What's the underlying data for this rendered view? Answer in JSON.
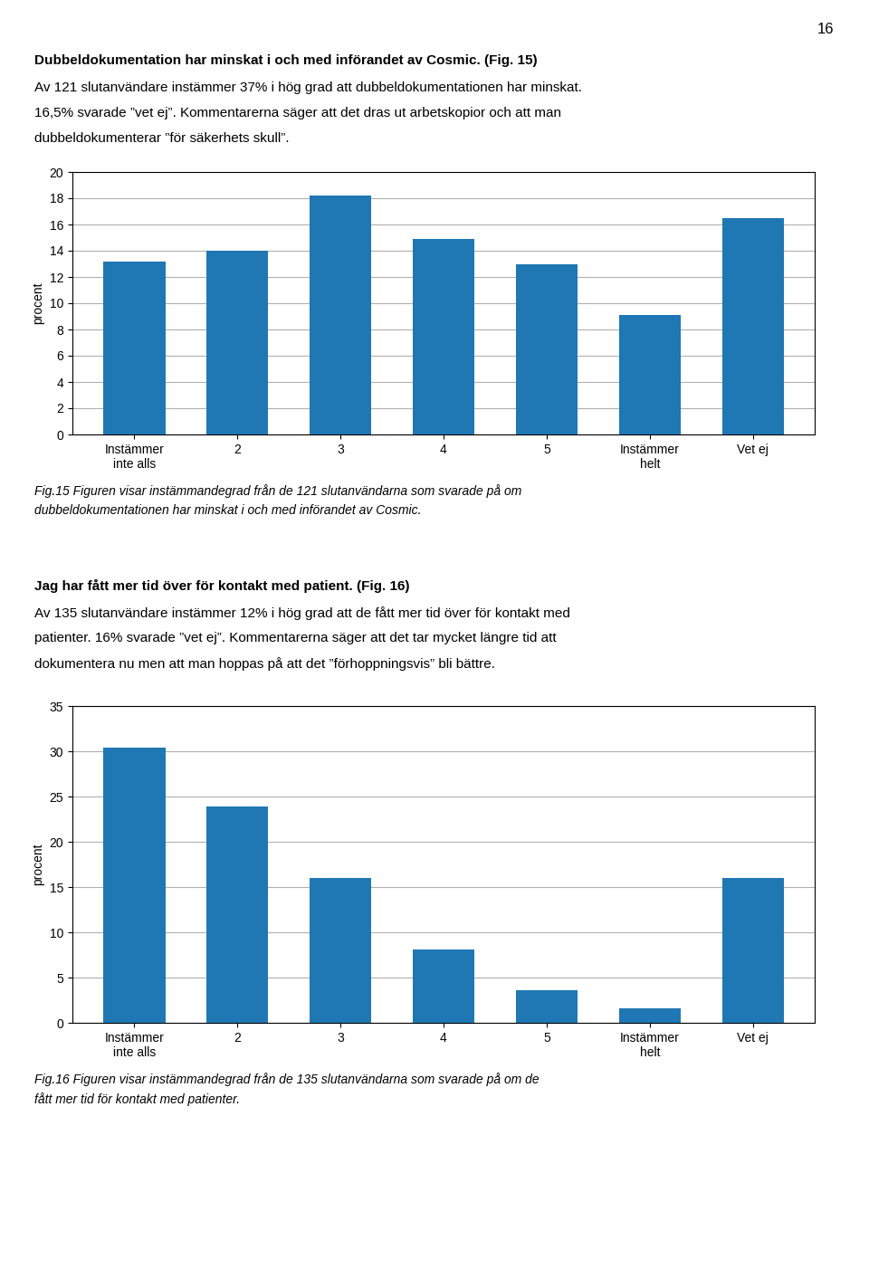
{
  "page_number": "16",
  "chart_data": [
    {
      "type": "bar",
      "title": "Dubbeldokumentation har minskat i och med införandet av Cosmic. (Fig. 15)",
      "body": [
        "Av 121 slutanvändare instämmer 37% i hög grad att dubbeldokumentationen har minskat.",
        "16,5% svarade ”vet ej”. Kommentarerna säger att det dras ut arbetskopior och att man",
        "dubbeldokumenterar ”för säkerhets skull”."
      ],
      "caption": [
        "Fig.15 Figuren visar instämmandegrad från de 121 slutanvändarna som svarade på om",
        "dubbeldokumentationen har minskat i och med införandet av Cosmic."
      ],
      "categories": [
        "Instämmer\ninte alls",
        "2",
        "3",
        "4",
        "5",
        "Instämmer\nhelt",
        "Vet ej"
      ],
      "values": [
        13.2,
        14.0,
        18.2,
        14.9,
        13.0,
        9.1,
        16.5
      ],
      "ylabel": "procent",
      "ylim": [
        0,
        20
      ],
      "yticks": [
        0,
        2,
        4,
        6,
        8,
        10,
        12,
        14,
        16,
        18,
        20
      ],
      "grid": true
    },
    {
      "type": "bar",
      "title": "Jag har fått mer tid över för kontakt med patient. (Fig. 16)",
      "body": [
        "Av 135 slutanvändare instämmer 12% i hög grad att de fått mer tid över för kontakt med",
        "patienter. 16% svarade ”vet ej”. Kommentarerna säger att det tar mycket längre tid att",
        "dokumentera nu men att man hoppas på att det ”förhoppningsvis” bli bättre."
      ],
      "caption": [
        "Fig.16 Figuren visar instämmandegrad från de 135 slutanvändarna som svarade på om de",
        "fått mer tid för kontakt med patienter."
      ],
      "categories": [
        "Instämmer\ninte alls",
        "2",
        "3",
        "4",
        "5",
        "Instämmer\nhelt",
        "Vet ej"
      ],
      "values": [
        30.4,
        23.9,
        16.0,
        8.1,
        3.6,
        1.6,
        16.0
      ],
      "ylabel": "procent",
      "ylim": [
        0,
        35
      ],
      "yticks": [
        0,
        5,
        10,
        15,
        20,
        25,
        30,
        35
      ],
      "grid": true
    }
  ]
}
